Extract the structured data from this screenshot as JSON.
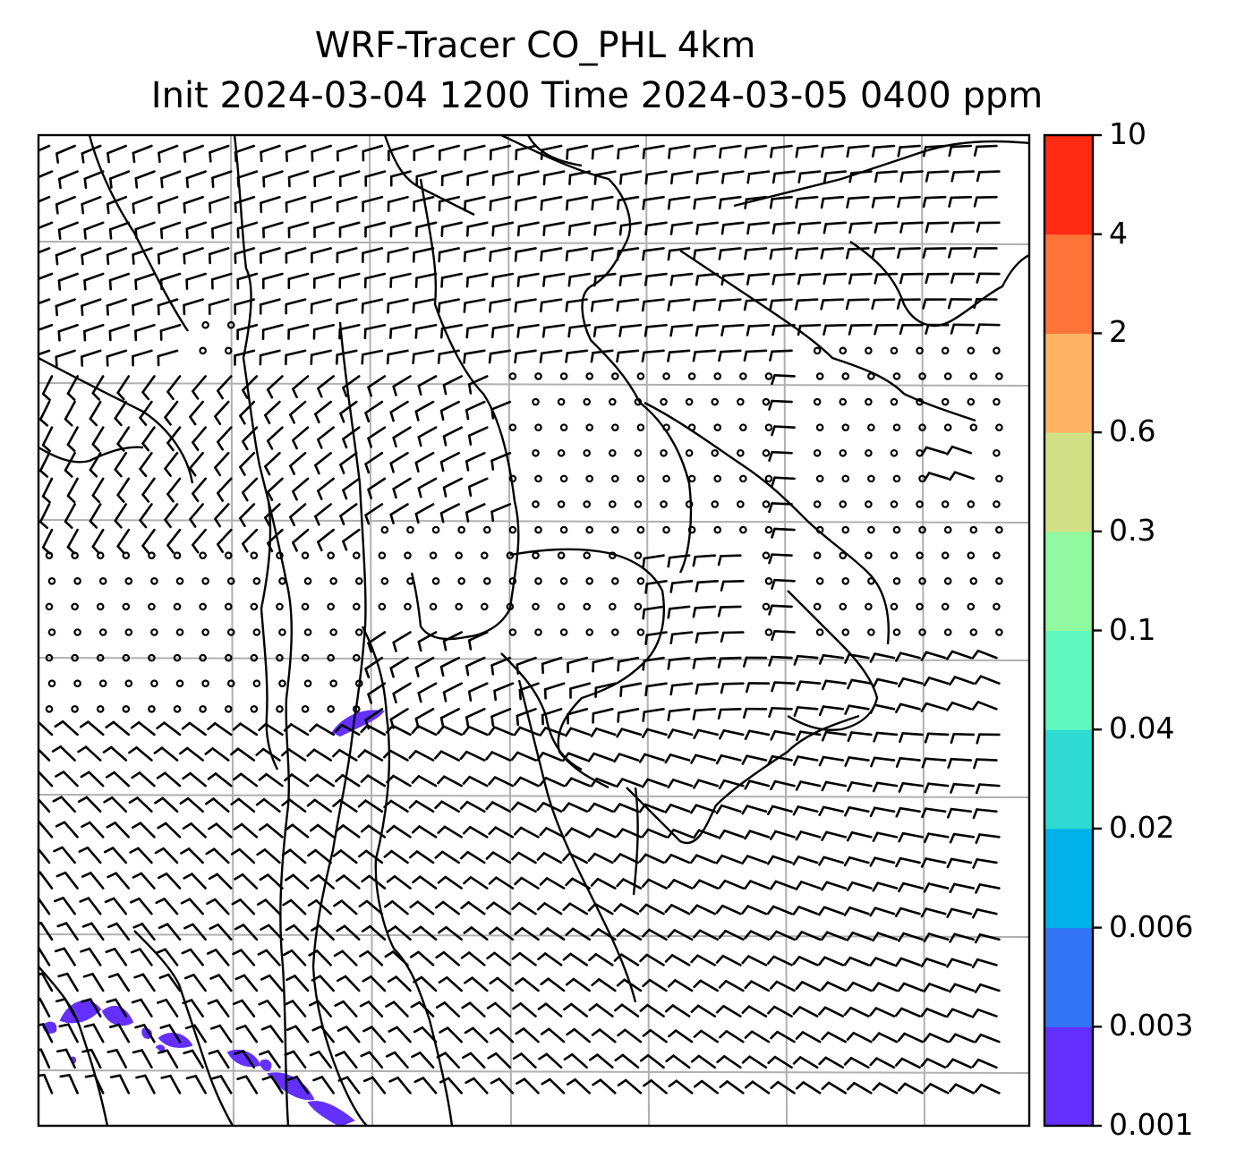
{
  "title_line1": "WRF-Tracer CO_PHL 4km",
  "title_line2": "Init 2024-03-04 1200 Time 2024-03-05 0400 ppm",
  "colorbar": {
    "levels": [
      "0.001",
      "0.003",
      "0.006",
      "0.02",
      "0.04",
      "0.1",
      "0.3",
      "0.6",
      "2",
      "4",
      "10"
    ],
    "colors": [
      "#6330ff",
      "#3275f7",
      "#00b1ea",
      "#2fdad2",
      "#5ff8c0",
      "#91f99f",
      "#d2e085",
      "#fdb363",
      "#fd7438",
      "#fe2a14"
    ]
  },
  "map": {
    "gridlines": true,
    "features": [
      "coastlines",
      "state-borders",
      "wind-barbs",
      "tracer-contours"
    ],
    "tracer_color": "#6330ff"
  }
}
